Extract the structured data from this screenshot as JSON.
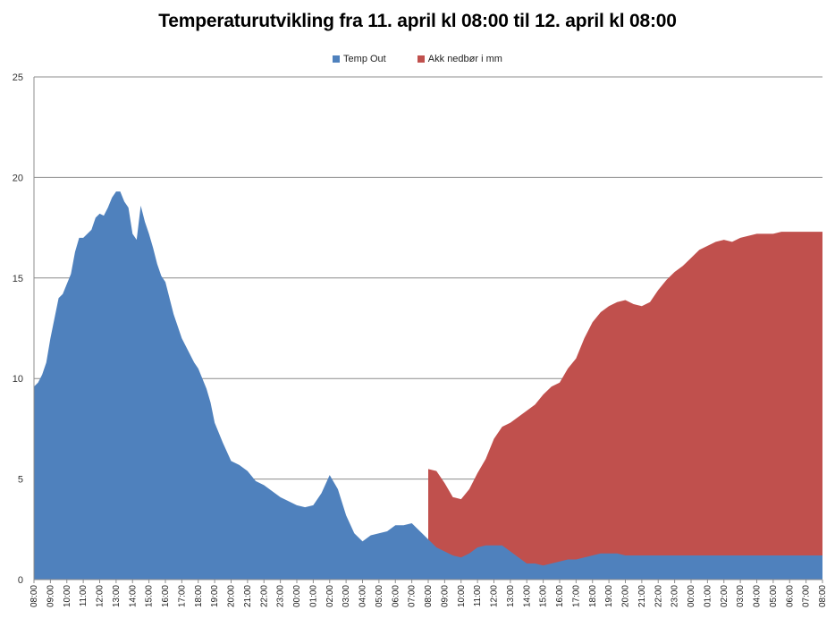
{
  "chart_data": {
    "type": "area",
    "title": "Temperaturutvikling fra 11. april kl 08:00 til 12. april kl 08:00",
    "xlabel": "",
    "ylabel": "",
    "ylim": [
      0,
      25
    ],
    "yticks": [
      0,
      5,
      10,
      15,
      20,
      25
    ],
    "grid": true,
    "legend_position": "top",
    "x_tick_labels": [
      "08:00",
      "09:00",
      "10:00",
      "11:00",
      "12:00",
      "13:00",
      "14:00",
      "15:00",
      "16:00",
      "17:00",
      "18:00",
      "19:00",
      "20:00",
      "21:00",
      "22:00",
      "23:00",
      "00:00",
      "01:00",
      "02:00",
      "03:00",
      "04:00",
      "05:00",
      "06:00",
      "07:00",
      "08:00",
      "09:00",
      "10:00",
      "11:00",
      "12:00",
      "13:00",
      "14:00",
      "15:00",
      "16:00",
      "17:00",
      "18:00",
      "19:00",
      "20:00",
      "21:00",
      "22:00",
      "23:00",
      "00:00",
      "01:00",
      "02:00",
      "03:00",
      "04:00",
      "05:00",
      "06:00",
      "07:00",
      "08:00"
    ],
    "series": [
      {
        "name": "Temp Out",
        "color": "#4f81bd",
        "x": [
          0,
          0.25,
          0.5,
          0.75,
          1,
          1.25,
          1.5,
          1.75,
          2,
          2.25,
          2.5,
          2.75,
          3,
          3.25,
          3.5,
          3.75,
          4,
          4.25,
          4.5,
          4.75,
          5,
          5.25,
          5.5,
          5.75,
          6,
          6.25,
          6.5,
          6.75,
          7,
          7.25,
          7.5,
          7.75,
          8,
          8.25,
          8.5,
          8.75,
          9,
          9.25,
          9.5,
          9.75,
          10,
          10.25,
          10.5,
          10.75,
          11,
          11.5,
          12,
          12.5,
          13,
          13.5,
          14,
          14.5,
          15,
          15.5,
          16,
          16.5,
          17,
          17.5,
          18,
          18.5,
          19,
          19.5,
          20,
          20.5,
          21,
          21.5,
          22,
          22.5,
          23,
          23.5,
          24,
          24.25,
          24.5,
          24.75,
          25,
          25.5,
          26,
          26.5,
          27,
          27.5,
          28,
          28.5,
          29,
          29.5,
          30,
          30.5,
          31,
          31.5,
          32,
          32.5,
          33,
          33.5,
          34,
          34.5,
          35,
          35.5,
          36,
          36.5,
          37,
          37.5,
          38,
          38.5,
          39,
          39.5,
          40,
          40.5,
          41,
          41.5,
          42,
          42.5,
          43,
          43.5,
          44,
          44.5,
          45,
          45.5,
          46,
          46.5,
          47,
          47.5,
          48
        ],
        "values": [
          9.6,
          9.8,
          10.2,
          10.8,
          12.0,
          13.0,
          14.0,
          14.2,
          14.7,
          15.2,
          16.3,
          17.0,
          17.0,
          17.2,
          17.4,
          18.0,
          18.2,
          18.1,
          18.5,
          19.0,
          19.3,
          19.3,
          18.8,
          18.5,
          17.2,
          16.9,
          18.6,
          17.8,
          17.2,
          16.5,
          15.7,
          15.1,
          14.8,
          14.0,
          13.2,
          12.6,
          12.0,
          11.6,
          11.2,
          10.8,
          10.5,
          10.0,
          9.5,
          8.8,
          7.8,
          6.8,
          5.9,
          5.7,
          5.4,
          4.9,
          4.7,
          4.4,
          4.1,
          3.9,
          3.7,
          3.6,
          3.7,
          4.3,
          5.2,
          4.5,
          3.2,
          2.3,
          1.9,
          2.2,
          2.3,
          2.4,
          2.7,
          2.7,
          2.8,
          2.4,
          2.0,
          1.8,
          1.6,
          1.5,
          1.4,
          1.2,
          1.1,
          1.3,
          1.6,
          1.7,
          1.7,
          1.7,
          1.4,
          1.1,
          0.8,
          0.8,
          0.7,
          0.8,
          0.9,
          1.0,
          1.0,
          1.1,
          1.2,
          1.3,
          1.3,
          1.3,
          1.2,
          1.2,
          1.2,
          1.2,
          1.2,
          1.2,
          1.2,
          1.2,
          1.2,
          1.2,
          1.2,
          1.2,
          1.2,
          1.2,
          1.2,
          1.2,
          1.2,
          1.2,
          1.2,
          1.2,
          1.2,
          1.2,
          1.2,
          1.2,
          1.2
        ]
      },
      {
        "name": "Akk nedbør i mm",
        "color": "#c0504d",
        "x": [
          0,
          1,
          2,
          3,
          4,
          5,
          6,
          7,
          8,
          9,
          10,
          11,
          12,
          13,
          14,
          15,
          16,
          17,
          18,
          19,
          20,
          21,
          22,
          23,
          24,
          24.5,
          25,
          25.5,
          26,
          26.5,
          27,
          27.5,
          28,
          28.5,
          29,
          29.5,
          30,
          30.5,
          31,
          31.5,
          32,
          32.5,
          33,
          33.5,
          34,
          34.5,
          35,
          35.5,
          36,
          36.5,
          37,
          37.5,
          38,
          38.5,
          39,
          39.5,
          40,
          40.5,
          41,
          41.5,
          42,
          42.5,
          43,
          43.5,
          44,
          44.5,
          45,
          45.5,
          46,
          46.5,
          47,
          47.5,
          48
        ],
        "values": [
          0,
          0,
          0,
          0,
          0,
          0,
          0,
          0,
          0,
          0,
          0,
          0,
          0,
          0,
          0,
          0,
          0,
          0,
          0,
          0,
          0,
          0,
          0,
          0,
          5.5,
          5.4,
          4.8,
          4.1,
          4.0,
          4.5,
          5.3,
          6.0,
          7.0,
          7.6,
          7.8,
          8.1,
          8.4,
          8.7,
          9.2,
          9.6,
          9.8,
          10.5,
          11.0,
          12.0,
          12.8,
          13.3,
          13.6,
          13.8,
          13.9,
          13.7,
          13.6,
          13.8,
          14.4,
          14.9,
          15.3,
          15.6,
          16.0,
          16.4,
          16.6,
          16.8,
          16.9,
          16.8,
          17.0,
          17.1,
          17.2,
          17.2,
          17.2,
          17.3,
          17.3,
          17.3,
          17.3,
          17.3,
          17.3
        ]
      }
    ]
  }
}
